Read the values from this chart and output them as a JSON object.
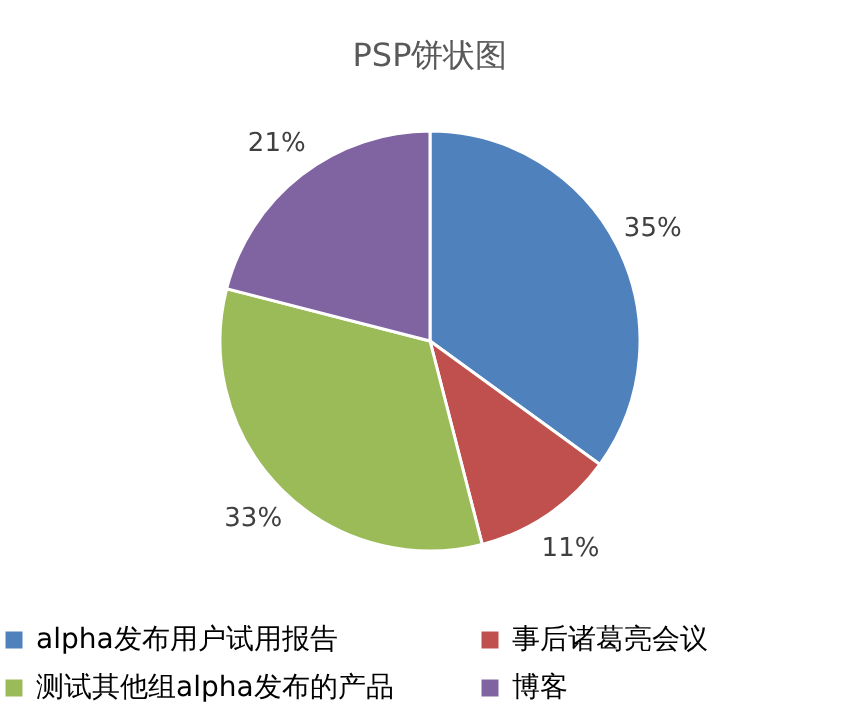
{
  "chart_data": {
    "type": "pie",
    "title": "PSP饼状图",
    "categories": [
      "alpha发布用户试用报告",
      "事后诸葛亮会议",
      "测试其他组alpha发布的产品",
      "博客"
    ],
    "values": [
      35,
      11,
      33,
      21
    ],
    "colors": [
      "#4f81bd",
      "#c0504d",
      "#9bbb59",
      "#8064a2"
    ],
    "value_labels": [
      "35%",
      "11%",
      "33%",
      "21%"
    ],
    "legend": "bottom"
  }
}
